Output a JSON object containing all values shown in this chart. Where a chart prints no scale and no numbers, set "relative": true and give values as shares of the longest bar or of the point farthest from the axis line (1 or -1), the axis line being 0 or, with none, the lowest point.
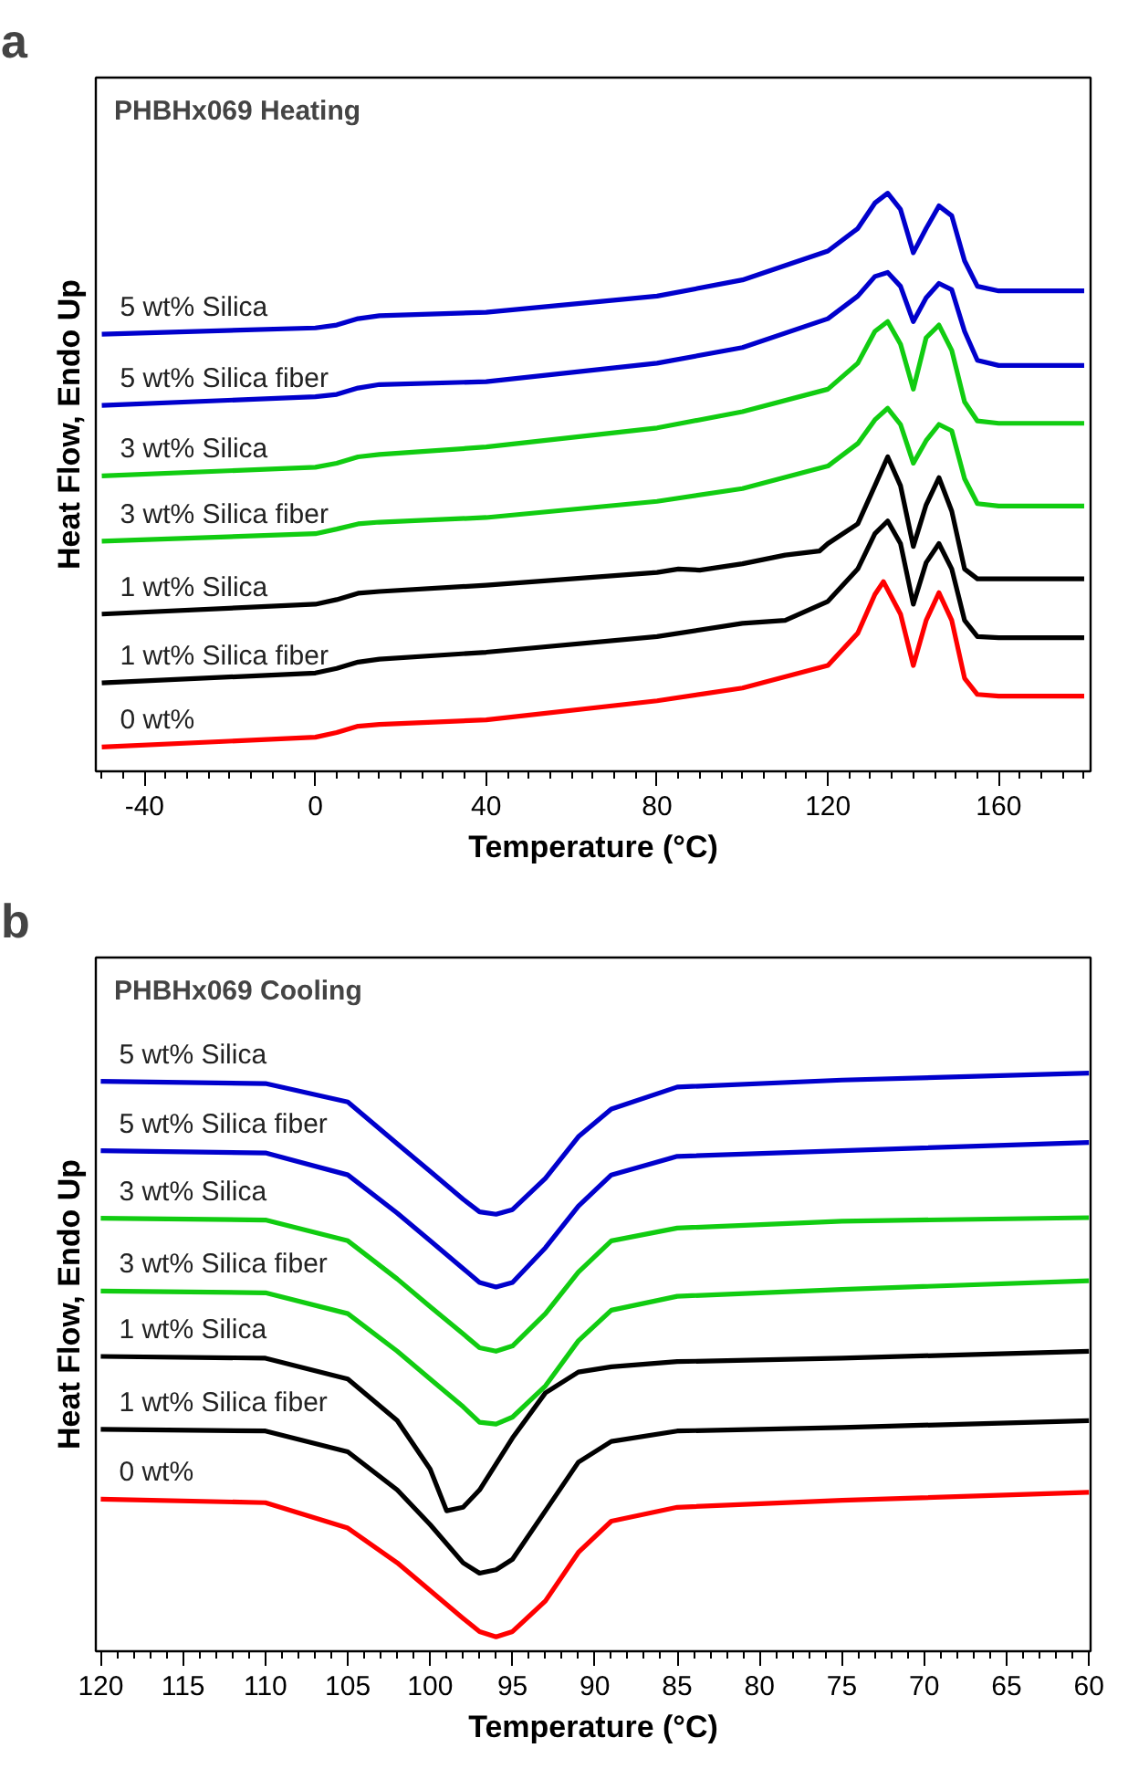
{
  "chart_data": [
    {
      "type": "line",
      "relative": true,
      "title": "PHBHx069 Heating",
      "xlabel": "Temperature (°C)",
      "ylabel": "Heat Flow, Endo Up",
      "annotations": [
        "a"
      ],
      "legend": false,
      "grid": false,
      "marker": "none",
      "line_style": "solid",
      "xlim": [
        -51.4,
        181.5
      ],
      "xticks": [
        {
          "value": -50,
          "label": null
        },
        {
          "value": -45,
          "label": null
        },
        -40,
        {
          "value": -35,
          "label": null
        },
        {
          "value": -30,
          "label": null
        },
        {
          "value": -25,
          "label": null
        },
        {
          "value": -20,
          "label": null
        },
        {
          "value": -15,
          "label": null
        },
        {
          "value": -10,
          "label": null
        },
        {
          "value": -5,
          "label": null
        },
        0,
        {
          "value": 5,
          "label": null
        },
        {
          "value": 10,
          "label": null
        },
        {
          "value": 15,
          "label": null
        },
        {
          "value": 20,
          "label": null
        },
        {
          "value": 25,
          "label": null
        },
        {
          "value": 30,
          "label": null
        },
        {
          "value": 35,
          "label": null
        },
        40,
        {
          "value": 45,
          "label": null
        },
        {
          "value": 50,
          "label": null
        },
        {
          "value": 55,
          "label": null
        },
        {
          "value": 60,
          "label": null
        },
        {
          "value": 65,
          "label": null
        },
        {
          "value": 70,
          "label": null
        },
        {
          "value": 75,
          "label": null
        },
        80,
        {
          "value": 85,
          "label": null
        },
        {
          "value": 90,
          "label": null
        },
        {
          "value": 95,
          "label": null
        },
        {
          "value": 100,
          "label": null
        },
        {
          "value": 105,
          "label": null
        },
        {
          "value": 110,
          "label": null
        },
        {
          "value": 115,
          "label": null
        },
        120,
        {
          "value": 125,
          "label": null
        },
        {
          "value": 130,
          "label": null
        },
        {
          "value": 135,
          "label": null
        },
        {
          "value": 140,
          "label": null
        },
        {
          "value": 145,
          "label": null
        },
        {
          "value": 150,
          "label": null
        },
        {
          "value": 155,
          "label": null
        },
        160,
        {
          "value": 165,
          "label": null
        },
        {
          "value": 170,
          "label": null
        },
        {
          "value": 175,
          "label": null
        },
        {
          "value": 180,
          "label": null
        }
      ],
      "series": [
        {
          "name": "5 wt% Silica",
          "color": "#0000cc",
          "x": [
            -50,
            0,
            5,
            10,
            15,
            40,
            80,
            100,
            120,
            127,
            131,
            134,
            137,
            140,
            143,
            146,
            149,
            152,
            155,
            160,
            180
          ],
          "values": [
            0.756,
            0.767,
            0.772,
            0.783,
            0.788,
            0.794,
            0.822,
            0.85,
            0.9,
            0.939,
            0.983,
            1,
            0.972,
            0.897,
            0.939,
            0.978,
            0.961,
            0.883,
            0.839,
            0.831,
            0.831
          ]
        },
        {
          "name": "5 wt% Silica fiber",
          "color": "#0000cc",
          "x": [
            -50,
            0,
            5,
            10,
            15,
            40,
            80,
            100,
            120,
            127,
            131,
            134,
            137,
            140,
            143,
            146,
            149,
            152,
            155,
            160,
            180
          ],
          "values": [
            0.633,
            0.648,
            0.652,
            0.663,
            0.669,
            0.674,
            0.706,
            0.733,
            0.783,
            0.822,
            0.856,
            0.863,
            0.839,
            0.778,
            0.819,
            0.844,
            0.833,
            0.761,
            0.711,
            0.702,
            0.702
          ]
        },
        {
          "name": "3 wt% Silica",
          "color": "#11cc11",
          "x": [
            -50,
            0,
            5,
            10,
            15,
            40,
            80,
            100,
            120,
            127,
            131,
            134,
            137,
            140,
            143,
            146,
            149,
            152,
            155,
            160,
            180
          ],
          "values": [
            0.511,
            0.526,
            0.533,
            0.544,
            0.548,
            0.561,
            0.594,
            0.622,
            0.661,
            0.706,
            0.761,
            0.778,
            0.739,
            0.661,
            0.75,
            0.772,
            0.728,
            0.639,
            0.606,
            0.602,
            0.602
          ]
        },
        {
          "name": "3 wt% Silica fiber",
          "color": "#11cc11",
          "x": [
            -50,
            0,
            5,
            10,
            15,
            40,
            80,
            100,
            120,
            127,
            131,
            134,
            137,
            140,
            143,
            146,
            149,
            152,
            155,
            160,
            180
          ],
          "values": [
            0.398,
            0.411,
            0.419,
            0.428,
            0.431,
            0.439,
            0.467,
            0.489,
            0.528,
            0.567,
            0.608,
            0.628,
            0.6,
            0.533,
            0.572,
            0.6,
            0.589,
            0.506,
            0.463,
            0.459,
            0.459
          ]
        },
        {
          "name": "1 wt% Silica",
          "color": "#000000",
          "x": [
            -50,
            0,
            5,
            10,
            15,
            40,
            80,
            85,
            90,
            100,
            110,
            118,
            120,
            127,
            131,
            134,
            137,
            140,
            143,
            146,
            149,
            152,
            155,
            160,
            180
          ],
          "values": [
            0.272,
            0.289,
            0.297,
            0.308,
            0.311,
            0.322,
            0.344,
            0.35,
            0.348,
            0.359,
            0.374,
            0.381,
            0.394,
            0.428,
            0.494,
            0.544,
            0.494,
            0.389,
            0.461,
            0.508,
            0.45,
            0.35,
            0.333,
            0.333,
            0.333
          ]
        },
        {
          "name": "1 wt% Silica fiber",
          "color": "#000000",
          "x": [
            -50,
            0,
            5,
            10,
            15,
            40,
            80,
            100,
            110,
            120,
            127,
            131,
            134,
            137,
            140,
            143,
            146,
            149,
            152,
            155,
            160,
            180
          ],
          "values": [
            0.153,
            0.17,
            0.178,
            0.189,
            0.194,
            0.206,
            0.233,
            0.256,
            0.261,
            0.294,
            0.35,
            0.411,
            0.433,
            0.394,
            0.289,
            0.361,
            0.394,
            0.35,
            0.261,
            0.233,
            0.231,
            0.231
          ]
        },
        {
          "name": "0 wt%",
          "color": "#ff0000",
          "x": [
            -50,
            0,
            5,
            10,
            15,
            40,
            80,
            100,
            120,
            127,
            131,
            133,
            137,
            140,
            143,
            146,
            149,
            152,
            155,
            160,
            180
          ],
          "values": [
            0.042,
            0.059,
            0.067,
            0.078,
            0.081,
            0.089,
            0.122,
            0.144,
            0.183,
            0.239,
            0.306,
            0.328,
            0.272,
            0.183,
            0.261,
            0.309,
            0.261,
            0.161,
            0.133,
            0.13,
            0.13
          ]
        }
      ]
    },
    {
      "type": "line",
      "relative": true,
      "title": "PHBHx069 Cooling",
      "xlabel": "Temperature (°C)",
      "ylabel": "Heat Flow, Endo Up",
      "annotations": [
        "b"
      ],
      "legend": false,
      "grid": false,
      "marker": "none",
      "line_style": "solid",
      "xlim": [
        120.3,
        59.9
      ],
      "xticks": [
        120,
        {
          "value": 119,
          "label": null
        },
        {
          "value": 118,
          "label": null
        },
        {
          "value": 117,
          "label": null
        },
        {
          "value": 116,
          "label": null
        },
        115,
        {
          "value": 114,
          "label": null
        },
        {
          "value": 113,
          "label": null
        },
        {
          "value": 112,
          "label": null
        },
        {
          "value": 111,
          "label": null
        },
        110,
        {
          "value": 109,
          "label": null
        },
        {
          "value": 108,
          "label": null
        },
        {
          "value": 107,
          "label": null
        },
        {
          "value": 106,
          "label": null
        },
        105,
        {
          "value": 104,
          "label": null
        },
        {
          "value": 103,
          "label": null
        },
        {
          "value": 102,
          "label": null
        },
        {
          "value": 101,
          "label": null
        },
        100,
        {
          "value": 99,
          "label": null
        },
        {
          "value": 98,
          "label": null
        },
        {
          "value": 97,
          "label": null
        },
        {
          "value": 96,
          "label": null
        },
        95,
        {
          "value": 94,
          "label": null
        },
        {
          "value": 93,
          "label": null
        },
        {
          "value": 92,
          "label": null
        },
        {
          "value": 91,
          "label": null
        },
        90,
        {
          "value": 89,
          "label": null
        },
        {
          "value": 88,
          "label": null
        },
        {
          "value": 87,
          "label": null
        },
        {
          "value": 86,
          "label": null
        },
        85,
        {
          "value": 84,
          "label": null
        },
        {
          "value": 83,
          "label": null
        },
        {
          "value": 82,
          "label": null
        },
        {
          "value": 81,
          "label": null
        },
        80,
        {
          "value": 79,
          "label": null
        },
        {
          "value": 78,
          "label": null
        },
        {
          "value": 77,
          "label": null
        },
        {
          "value": 76,
          "label": null
        },
        75,
        {
          "value": 74,
          "label": null
        },
        {
          "value": 73,
          "label": null
        },
        {
          "value": 72,
          "label": null
        },
        {
          "value": 71,
          "label": null
        },
        70,
        {
          "value": 69,
          "label": null
        },
        {
          "value": 68,
          "label": null
        },
        {
          "value": 67,
          "label": null
        },
        {
          "value": 66,
          "label": null
        },
        65,
        {
          "value": 64,
          "label": null
        },
        {
          "value": 63,
          "label": null
        },
        {
          "value": 62,
          "label": null
        },
        {
          "value": 61,
          "label": null
        },
        60
      ],
      "series": [
        {
          "name": "5 wt% Silica",
          "color": "#0000cc",
          "x": [
            120,
            110,
            105,
            102,
            100,
            98,
            97,
            96,
            95,
            93,
            91,
            89,
            85,
            75,
            60
          ],
          "values": [
            0.986,
            0.982,
            0.95,
            0.878,
            0.83,
            0.782,
            0.76,
            0.756,
            0.764,
            0.818,
            0.89,
            0.938,
            0.976,
            0.988,
            1
          ]
        },
        {
          "name": "5 wt% Silica fiber",
          "color": "#0000cc",
          "x": [
            120,
            110,
            105,
            102,
            100,
            98,
            97,
            96,
            95,
            93,
            91,
            89,
            85,
            75,
            60
          ],
          "values": [
            0.866,
            0.862,
            0.824,
            0.758,
            0.71,
            0.662,
            0.638,
            0.63,
            0.638,
            0.698,
            0.77,
            0.824,
            0.856,
            0.866,
            0.88
          ]
        },
        {
          "name": "3 wt% Silica",
          "color": "#11cc11",
          "x": [
            120,
            110,
            105,
            102,
            100,
            98,
            97,
            96,
            95,
            93,
            91,
            89,
            85,
            75,
            60
          ],
          "values": [
            0.749,
            0.746,
            0.71,
            0.644,
            0.596,
            0.549,
            0.525,
            0.519,
            0.528,
            0.584,
            0.656,
            0.71,
            0.732,
            0.744,
            0.75
          ]
        },
        {
          "name": "3 wt% Silica fiber",
          "color": "#11cc11",
          "x": [
            120,
            110,
            105,
            102,
            100,
            98,
            97,
            96,
            95,
            93,
            91,
            89,
            85,
            75,
            60
          ],
          "values": [
            0.623,
            0.62,
            0.584,
            0.519,
            0.471,
            0.423,
            0.396,
            0.393,
            0.405,
            0.459,
            0.537,
            0.59,
            0.614,
            0.626,
            0.641
          ]
        },
        {
          "name": "1 wt% Silica",
          "color": "#000000",
          "x": [
            120,
            110,
            105,
            102,
            100,
            99,
            98,
            97,
            95,
            93,
            91,
            89,
            85,
            75,
            60
          ],
          "values": [
            0.51,
            0.507,
            0.471,
            0.399,
            0.315,
            0.243,
            0.249,
            0.279,
            0.369,
            0.447,
            0.483,
            0.492,
            0.501,
            0.507,
            0.519
          ]
        },
        {
          "name": "1 wt% Silica fiber",
          "color": "#000000",
          "x": [
            120,
            110,
            105,
            102,
            100,
            98,
            97,
            96,
            95,
            93,
            91,
            89,
            85,
            75,
            60
          ],
          "values": [
            0.384,
            0.381,
            0.345,
            0.279,
            0.219,
            0.153,
            0.135,
            0.141,
            0.159,
            0.243,
            0.327,
            0.363,
            0.381,
            0.387,
            0.399
          ]
        },
        {
          "name": "0 wt%",
          "color": "#ff0000",
          "x": [
            120,
            110,
            105,
            102,
            100,
            98,
            97,
            96,
            95,
            93,
            91,
            89,
            85,
            75,
            60
          ],
          "values": [
            0.263,
            0.257,
            0.213,
            0.153,
            0.105,
            0.057,
            0.034,
            0.025,
            0.034,
            0.087,
            0.171,
            0.225,
            0.249,
            0.261,
            0.275
          ]
        }
      ]
    }
  ]
}
